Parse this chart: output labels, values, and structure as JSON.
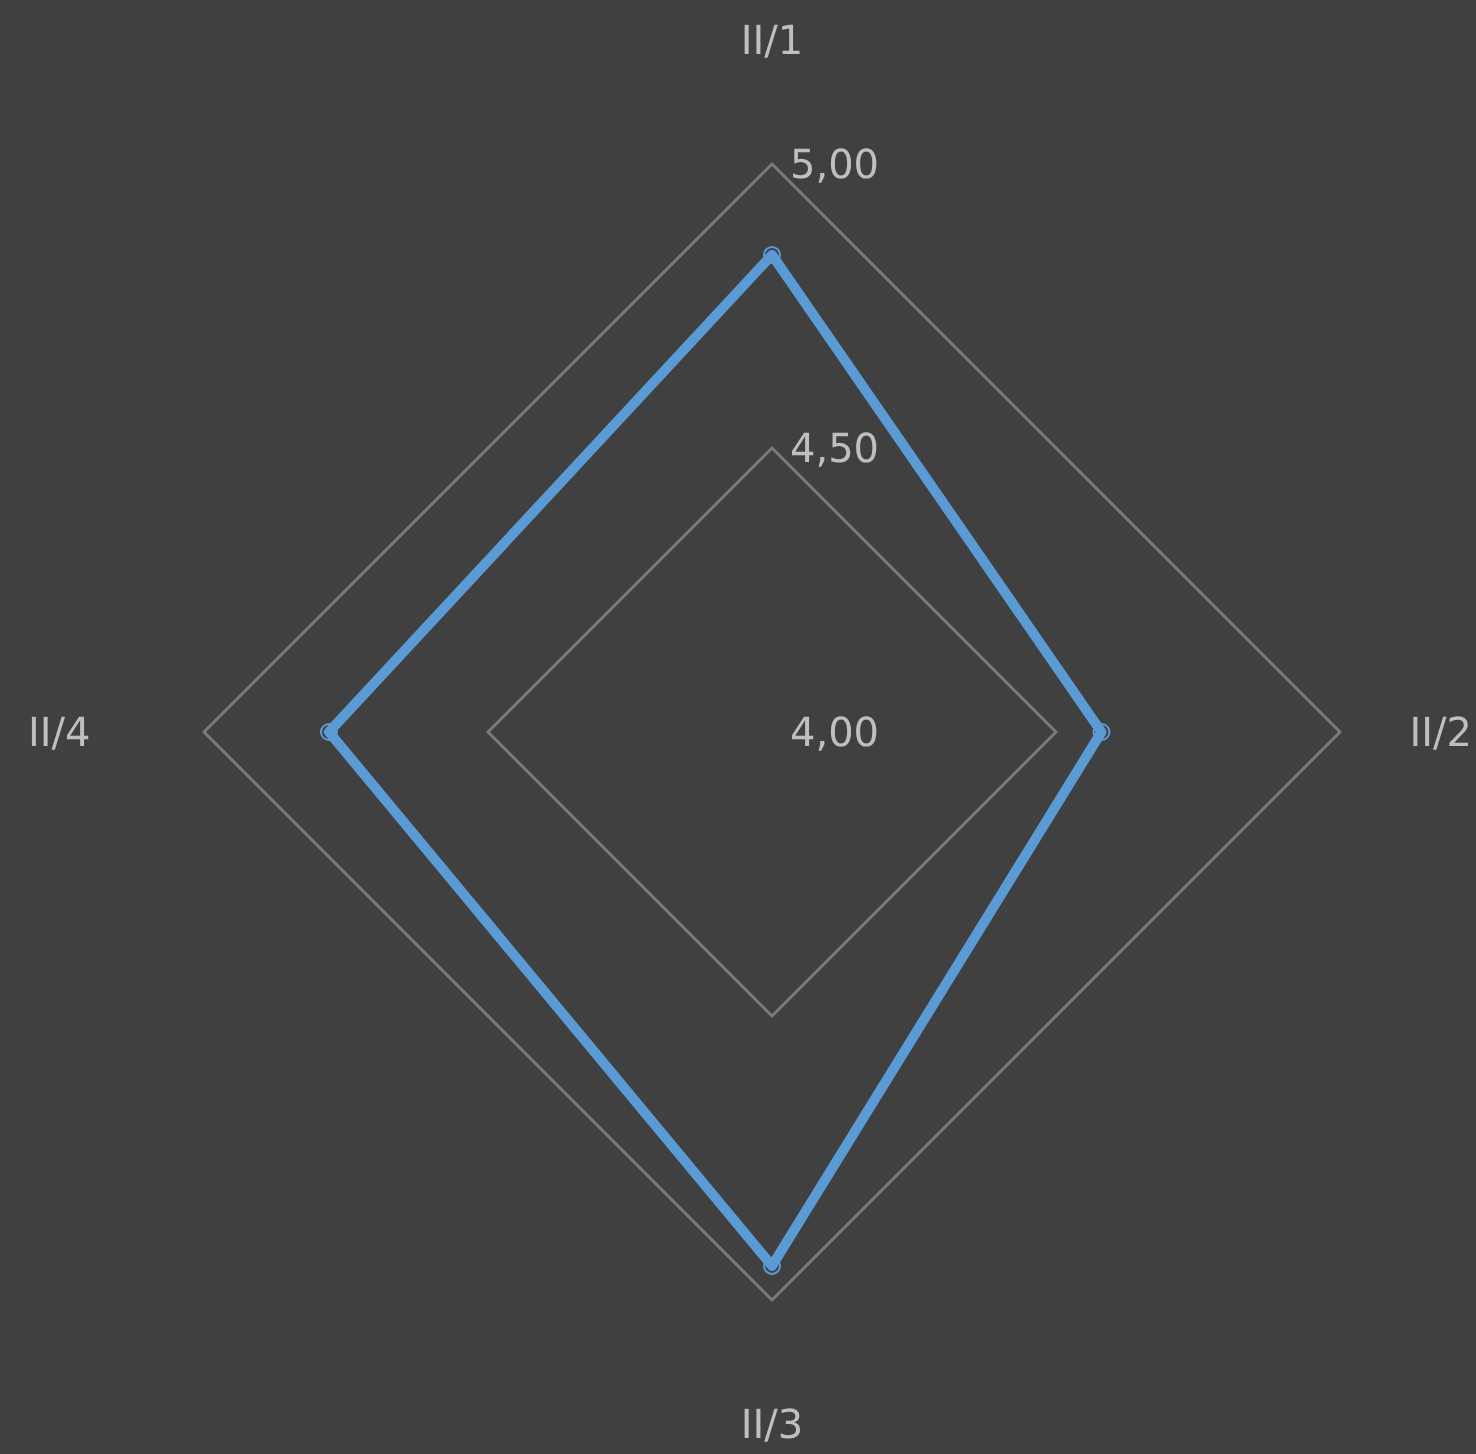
{
  "chart_data": {
    "type": "radar",
    "categories": [
      "II/1",
      "II/2",
      "II/3",
      "II/4"
    ],
    "series": [
      {
        "color": "#5b9bd5",
        "values": [
          4.84,
          4.58,
          4.94,
          4.78
        ]
      }
    ],
    "ylim": [
      4,
      5
    ],
    "yticks": [
      {
        "value": 4,
        "label": "4,00"
      },
      {
        "value": 4.5,
        "label": "4,50"
      },
      {
        "value": 5,
        "label": "5,00"
      }
    ],
    "grid": true,
    "marker": "circle",
    "legend": false
  }
}
